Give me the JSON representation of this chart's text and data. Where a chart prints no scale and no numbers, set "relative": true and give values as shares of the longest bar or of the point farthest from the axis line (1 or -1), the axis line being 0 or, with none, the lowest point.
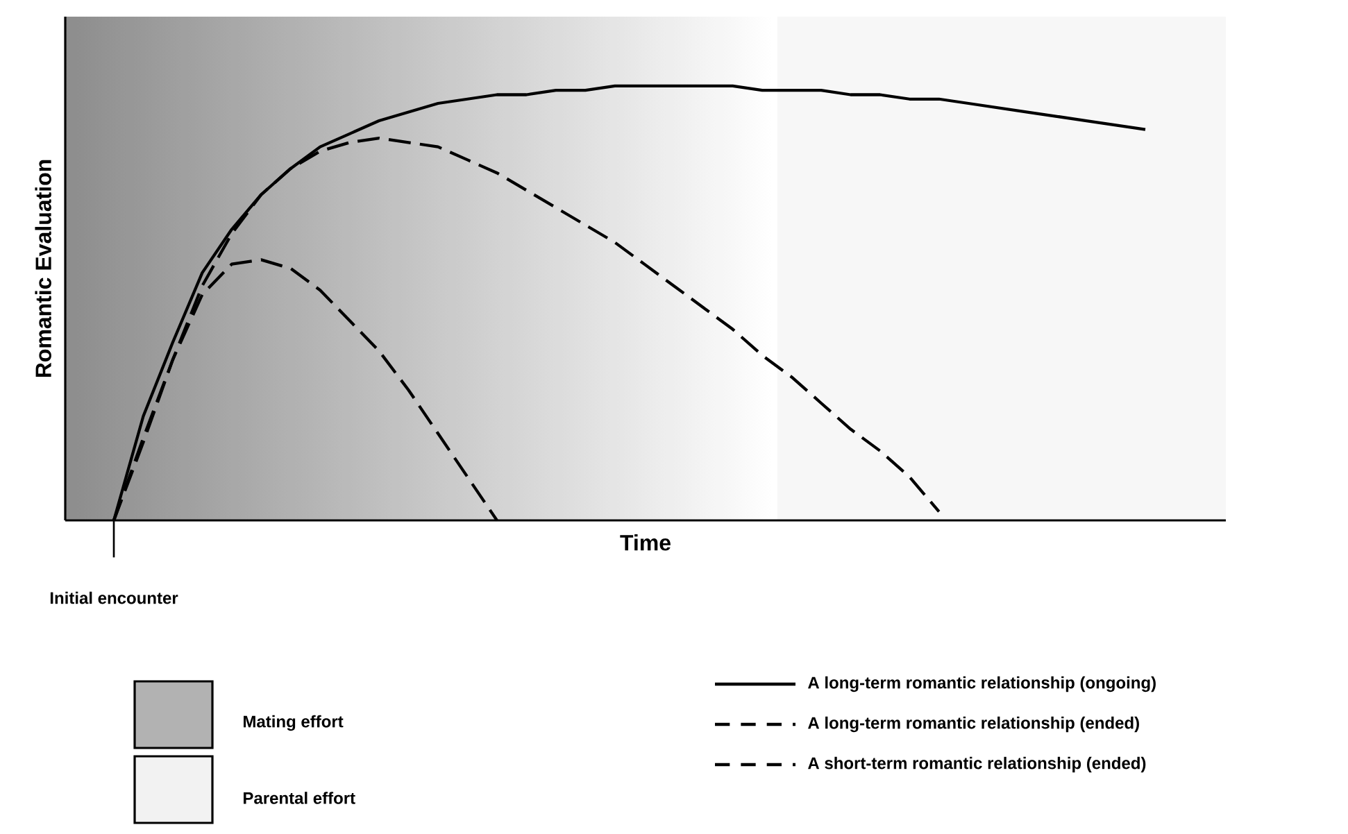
{
  "chart_data": {
    "type": "line",
    "relative": true,
    "xlabel": "Time",
    "ylabel": "Romantic Evaluation",
    "categories": [
      null,
      null,
      null,
      null,
      null,
      null,
      null,
      null,
      null,
      null,
      null,
      null,
      null,
      null,
      null,
      null,
      null,
      null,
      null,
      null,
      null,
      null,
      null,
      null,
      null,
      null,
      null,
      null,
      null,
      null,
      null,
      null,
      null,
      null,
      null,
      null
    ],
    "series": [
      {
        "name": "A long-term romantic relationship (ongoing)",
        "color": "#000000",
        "line_style": "solid",
        "values": [
          0,
          0.24,
          0.41,
          0.57,
          0.67,
          0.75,
          0.81,
          0.86,
          0.89,
          0.92,
          0.94,
          0.96,
          0.97,
          0.98,
          0.98,
          0.99,
          0.99,
          1,
          1,
          1,
          1,
          1,
          0.99,
          0.99,
          0.99,
          0.98,
          0.98,
          0.97,
          0.97,
          0.96,
          0.95,
          0.94,
          0.93,
          0.92,
          0.91,
          0.9
        ]
      },
      {
        "name": "A long-term romantic relationship (ended)",
        "color": "#000000",
        "line_style": "dashed",
        "values": [
          0,
          0.18,
          0.37,
          0.54,
          0.66,
          0.75,
          0.81,
          0.85,
          0.87,
          0.88,
          0.87,
          0.86,
          0.83,
          0.8,
          0.76,
          0.72,
          0.68,
          0.64,
          0.59,
          0.54,
          0.49,
          0.44,
          0.38,
          0.33,
          0.27,
          0.21,
          0.16,
          0.1,
          0.02,
          null,
          null,
          null,
          null,
          null,
          null,
          null
        ]
      },
      {
        "name": "A short-term romantic relationship (ended)",
        "color": "#000000",
        "line_style": "dashed",
        "values": [
          0,
          0.19,
          0.37,
          0.52,
          0.59,
          0.6,
          0.58,
          0.53,
          0.46,
          0.39,
          0.3,
          0.2,
          0.1,
          0,
          null,
          null,
          null,
          null,
          null,
          null,
          null,
          null,
          null,
          null,
          null,
          null,
          null,
          null,
          null,
          null,
          null,
          null,
          null,
          null,
          null,
          null
        ]
      }
    ],
    "annotations": [
      "Initial encounter",
      "Mating effort",
      "Parental effort"
    ],
    "legend": "bottom right"
  }
}
